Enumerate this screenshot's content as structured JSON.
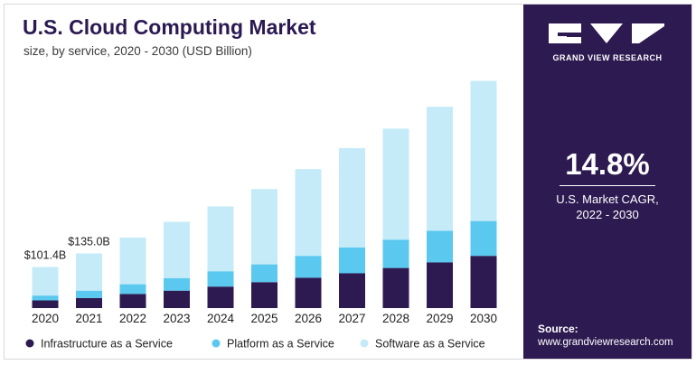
{
  "title": "U.S. Cloud Computing Market",
  "subtitle": "size, by service, 2020 - 2030 (USD Billion)",
  "brand": {
    "logo_icon": "grand-view-research-logo",
    "name": "GRAND VIEW RESEARCH"
  },
  "cagr": {
    "value": "14.8%",
    "label_line1": "U.S. Market CAGR,",
    "label_line2": "2022 - 2030"
  },
  "source": {
    "title": "Source:",
    "url": "www.grandviewresearch.com"
  },
  "colors": {
    "infrastructure": "#2d1a51",
    "platform": "#5bc8ef",
    "software": "#c5ebf9",
    "sidebar": "#2d1a51"
  },
  "chart_data": {
    "type": "bar",
    "stacked": true,
    "categories": [
      "2020",
      "2021",
      "2022",
      "2023",
      "2024",
      "2025",
      "2026",
      "2027",
      "2028",
      "2029",
      "2030"
    ],
    "series": [
      {
        "name": "Infrastructure as a Service",
        "values": [
          19,
          25,
          35,
          43,
          53,
          64,
          75,
          86,
          99,
          113,
          129
        ]
      },
      {
        "name": "Platform as a Service",
        "values": [
          12,
          18,
          24,
          31,
          38,
          44,
          54,
          64,
          70,
          78,
          86
        ]
      },
      {
        "name": "Software as a Service",
        "values": [
          70.4,
          92,
          115,
          139,
          160,
          186,
          214,
          245,
          274,
          306,
          346
        ]
      }
    ],
    "data_labels": [
      {
        "category": "2020",
        "text": "$101.4B"
      },
      {
        "category": "2021",
        "text": "$135.0B"
      }
    ],
    "ylim": [
      0,
      580
    ],
    "grid": false,
    "legend": "bottom",
    "xlabel": "",
    "ylabel": ""
  }
}
